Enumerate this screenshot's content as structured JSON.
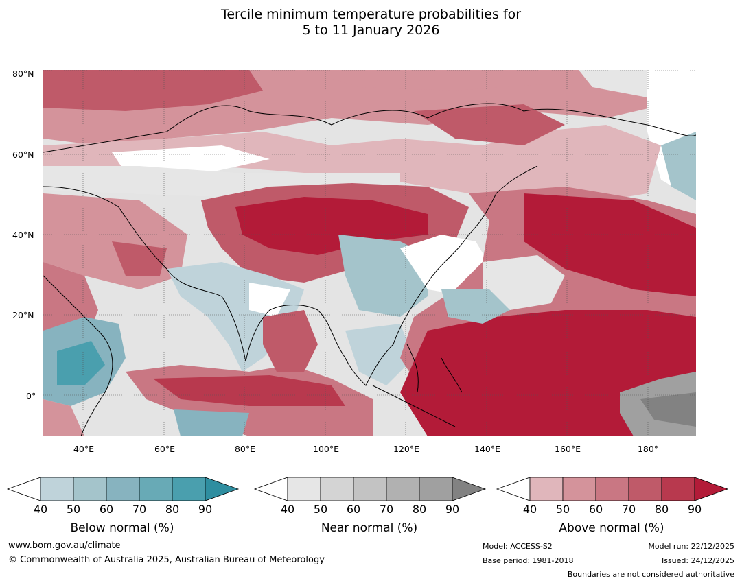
{
  "title_line1": "Tercile minimum temperature probabilities for",
  "title_line2": "5 to 11 January 2026",
  "map": {
    "lat_labels": [
      "80°N",
      "60°N",
      "40°N",
      "20°N",
      "0°"
    ],
    "lon_labels": [
      "40°E",
      "60°E",
      "80°E",
      "100°E",
      "120°E",
      "140°E",
      "160°E",
      "180°"
    ]
  },
  "colorbars": {
    "ticks": [
      "40",
      "50",
      "60",
      "70",
      "80",
      "90"
    ],
    "below": {
      "label": "Below normal (%)",
      "colors": [
        "#ffffff",
        "#bfd3da",
        "#a4c4cb",
        "#87b3bf",
        "#68aab6",
        "#4a9fae",
        "#2f8ea0"
      ]
    },
    "near": {
      "label": "Near normal (%)",
      "colors": [
        "#ffffff",
        "#e6e6e6",
        "#d4d4d4",
        "#c3c3c3",
        "#b1b1b1",
        "#a0a0a0",
        "#828282"
      ]
    },
    "above": {
      "label": "Above normal (%)",
      "colors": [
        "#ffffff",
        "#e0b6bb",
        "#d4939b",
        "#c97783",
        "#bf5a69",
        "#b8394e",
        "#b31b38"
      ]
    }
  },
  "footer": {
    "website": "www.bom.gov.au/climate",
    "copyright": "© Commonwealth of Australia 2025, Australian Bureau of Meteorology",
    "model": "Model: ACCESS-S2",
    "base_period": "Base period: 1981-2018",
    "model_run": "Model run: 22/12/2025",
    "issued": "Issued: 24/12/2025",
    "disclaimer": "Boundaries are not considered authoritative"
  }
}
